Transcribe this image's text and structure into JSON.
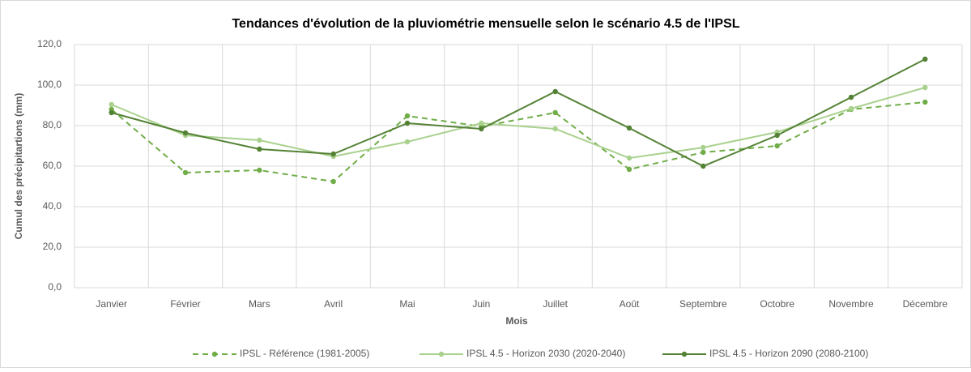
{
  "chart_data": {
    "type": "line",
    "title": "Tendances d'évolution de la pluviométrie mensuelle selon le scénario 4.5 de l'IPSL",
    "x_label": "Mois",
    "y_label": "Cumul des précipitartions (mm)",
    "categories": [
      "Janvier",
      "Février",
      "Mars",
      "Avril",
      "Mai",
      "Juin",
      "Juillet",
      "Août",
      "Septembre",
      "Octobre",
      "Novembre",
      "Décembre"
    ],
    "series": [
      {
        "name": "IPSL - Référence (1981-2005)",
        "color": "#70ad47",
        "dashed": true,
        "values": [
          88,
          56.8,
          58,
          52.4,
          84.8,
          79.6,
          86.4,
          58.4,
          66.8,
          70,
          88,
          91.6
        ]
      },
      {
        "name": "IPSL 4.5 - Horizon 2030 (2020-2040)",
        "color": "#a9d18e",
        "dashed": false,
        "values": [
          90.4,
          75.2,
          72.8,
          64.8,
          72,
          81.2,
          78.4,
          64,
          69.2,
          76.8,
          88.4,
          98.8
        ]
      },
      {
        "name": "IPSL 4.5 - Horizon 2090 (2080-2100)",
        "color": "#548235",
        "dashed": false,
        "values": [
          86.4,
          76.4,
          68.4,
          66,
          81.2,
          78.4,
          96.8,
          78.8,
          60,
          75.2,
          94,
          112.8
        ]
      }
    ],
    "ylim": [
      0,
      120
    ],
    "yticks": [
      {
        "value": 0,
        "label": "0,0"
      },
      {
        "value": 20,
        "label": "20,0"
      },
      {
        "value": 40,
        "label": "40,0"
      },
      {
        "value": 60,
        "label": "60,0"
      },
      {
        "value": 80,
        "label": "80,0"
      },
      {
        "value": 100,
        "label": "100,0"
      },
      {
        "value": 120,
        "label": "120,0"
      }
    ],
    "grid": true,
    "legend": "bottom"
  }
}
